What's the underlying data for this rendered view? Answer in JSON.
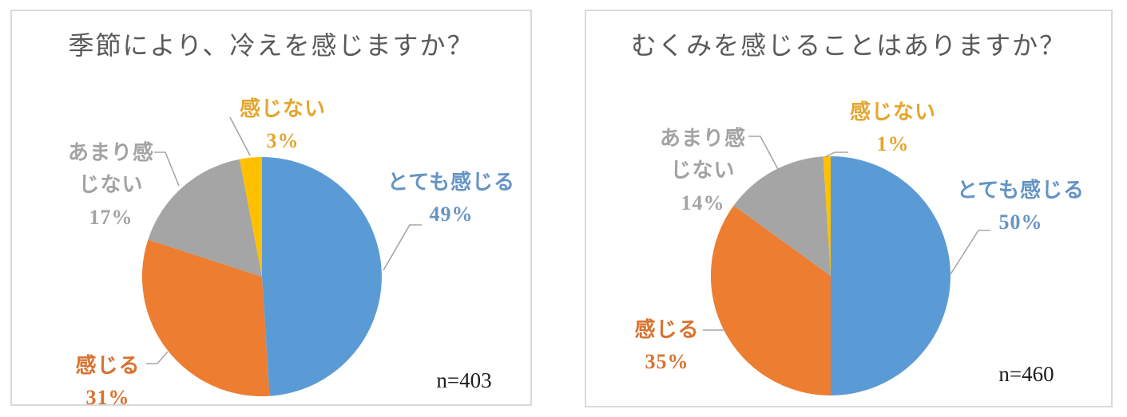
{
  "ui_colors": {
    "panel_border": "#D9D9D9",
    "title_color": "#595959",
    "annotation_color": "#1D1D1D",
    "leader_line_color": "#A6A6A6"
  },
  "chart_data": [
    {
      "type": "pie",
      "title": "季節により、冷えを感じますか？",
      "annotation": "n=403",
      "labels": [
        "とても感じる",
        "感じる",
        "あまり感じない",
        "感じない"
      ],
      "values": [
        49,
        31,
        17,
        3
      ],
      "unit": "%",
      "slice_colors": [
        "#5B9BD5",
        "#ED7D31",
        "#A5A5A5",
        "#FFC000"
      ],
      "label_text_colors": [
        "#6594C5",
        "#D9722F",
        "#A3A3A3",
        "#E4A62F"
      ],
      "label_lines": [
        [
          "とても感じる",
          "49%"
        ],
        [
          "感じる",
          "31%"
        ],
        [
          "あまり感",
          "じない",
          "17%"
        ],
        [
          "感じない",
          "3%"
        ]
      ],
      "start_angle_deg": 0,
      "direction": "clockwise",
      "legend": false
    },
    {
      "type": "pie",
      "title": "むくみを感じることはありますか？",
      "annotation": "n=460",
      "labels": [
        "とても感じる",
        "感じる",
        "あまり感じない",
        "感じない"
      ],
      "values": [
        50,
        35,
        14,
        1
      ],
      "unit": "%",
      "slice_colors": [
        "#5B9BD5",
        "#ED7D31",
        "#A5A5A5",
        "#FFC000"
      ],
      "label_text_colors": [
        "#6594C5",
        "#D9722F",
        "#A3A3A3",
        "#E4A62F"
      ],
      "label_lines": [
        [
          "とても感じる",
          "50%"
        ],
        [
          "感じる",
          "35%"
        ],
        [
          "あまり感",
          "じない",
          "14%"
        ],
        [
          "感じない",
          "1%"
        ]
      ],
      "start_angle_deg": 0,
      "direction": "clockwise",
      "legend": false
    }
  ]
}
